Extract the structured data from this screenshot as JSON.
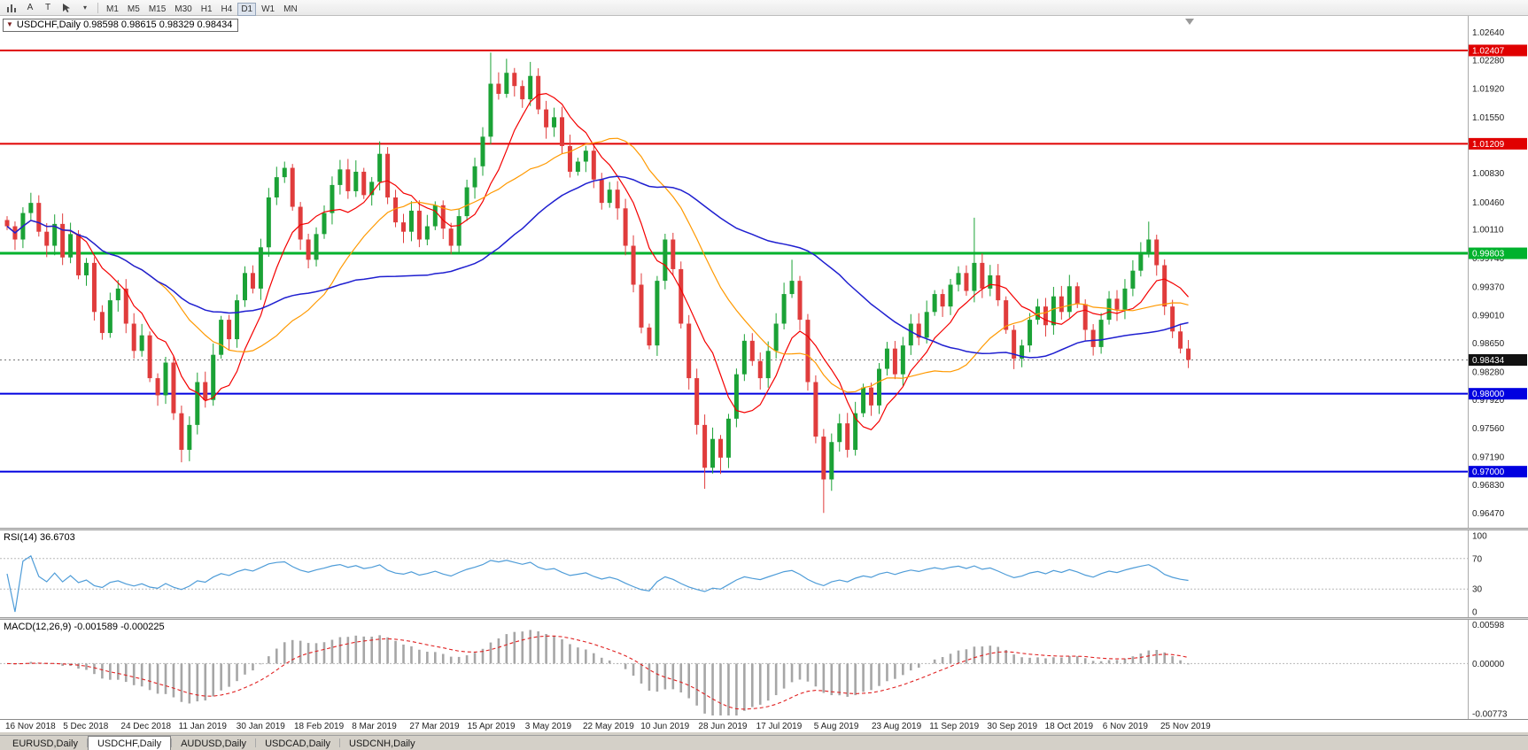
{
  "toolbar": {
    "a_label": "A",
    "t_label": "T",
    "timeframes": [
      "M1",
      "M5",
      "M15",
      "M30",
      "H1",
      "H4",
      "D1",
      "W1",
      "MN"
    ],
    "active_timeframe": "D1"
  },
  "chart": {
    "header_text": "USDCHF,Daily 0.98598 0.98615 0.98329 0.98434"
  },
  "rsi_panel": {
    "title": "RSI(14) 36.6703"
  },
  "macd_panel": {
    "title": "MACD(12,26,9) -0.001589 -0.000225"
  },
  "tabs": {
    "items": [
      "EURUSD,Daily",
      "USDCHF,Daily",
      "AUDUSD,Daily",
      "USDCAD,Daily",
      "USDCNH,Daily"
    ],
    "active": "USDCHF,Daily"
  },
  "chart_data": {
    "type": "candlestick",
    "symbol": "USDCHF",
    "timeframe": "Daily",
    "ohlc_header": {
      "open": "0.98598",
      "high": "0.98615",
      "low": "0.98329",
      "close": "0.98434"
    },
    "y_range": [
      0.9628,
      1.0285
    ],
    "y_ticks": [
      1.0264,
      1.0228,
      1.0192,
      1.0155,
      1.0083,
      1.0046,
      1.0011,
      0.9974,
      0.9937,
      0.9901,
      0.9865,
      0.9828,
      0.9792,
      0.9756,
      0.9719,
      0.9683,
      0.9647
    ],
    "hlines": [
      {
        "price": 1.02407,
        "color": "#e00000",
        "label": "1.02407",
        "width": 2
      },
      {
        "price": 1.01209,
        "color": "#e00000",
        "label": "1.01209",
        "width": 2
      },
      {
        "price": 0.99803,
        "color": "#00b22d",
        "label": "0.99803",
        "width": 3
      },
      {
        "price": 0.98,
        "color": "#0000e0",
        "label": "0.98000",
        "width": 2
      },
      {
        "price": 0.97,
        "color": "#0000e0",
        "label": "0.97000",
        "width": 2
      }
    ],
    "current_price": {
      "price": 0.98434,
      "label": "0.98434",
      "color": "#111111"
    },
    "colors": {
      "up": "#1ba236",
      "down": "#e03c3c"
    },
    "x_labels": [
      "16 Nov 2018",
      "5 Dec 2018",
      "24 Dec 2018",
      "11 Jan 2019",
      "30 Jan 2019",
      "18 Feb 2019",
      "8 Mar 2019",
      "27 Mar 2019",
      "15 Apr 2019",
      "3 May 2019",
      "22 May 2019",
      "10 Jun 2019",
      "28 Jun 2019",
      "17 Jul 2019",
      "5 Aug 2019",
      "23 Aug 2019",
      "11 Sep 2019",
      "30 Sep 2019",
      "18 Oct 2019",
      "6 Nov 2019",
      "25 Nov 2019"
    ],
    "closes": [
      1.0015,
      0.9998,
      1.0032,
      1.0045,
      1.0008,
      0.999,
      1.0018,
      0.9975,
      1.0005,
      0.9952,
      0.9968,
      0.9905,
      0.9878,
      0.992,
      0.9935,
      0.989,
      0.9855,
      0.9875,
      0.982,
      0.9798,
      0.984,
      0.9775,
      0.9728,
      0.976,
      0.9815,
      0.9792,
      0.985,
      0.9895,
      0.987,
      0.992,
      0.9955,
      0.9935,
      0.9988,
      1.0052,
      1.0078,
      1.009,
      1.004,
      0.9998,
      0.9972,
      1.0005,
      1.0032,
      1.0068,
      1.0088,
      1.006,
      1.0085,
      1.0055,
      1.0072,
      1.0108,
      1.0052,
      1.002,
      1.0008,
      1.0035,
      0.9998,
      1.0015,
      1.0042,
      1.0012,
      0.999,
      1.0028,
      1.0065,
      1.0092,
      1.013,
      1.0198,
      1.0185,
      1.0212,
      1.0195,
      1.0178,
      1.0208,
      1.0165,
      1.0142,
      1.0155,
      1.0118,
      1.0085,
      1.0098,
      1.0112,
      1.0075,
      1.0045,
      1.0062,
      1.0038,
      0.999,
      0.994,
      0.9885,
      0.9862,
      0.9945,
      0.9998,
      0.996,
      0.989,
      0.982,
      0.976,
      0.9705,
      0.9742,
      0.9718,
      0.9768,
      0.9825,
      0.9868,
      0.9842,
      0.982,
      0.9855,
      0.989,
      0.9928,
      0.9945,
      0.9895,
      0.9815,
      0.9745,
      0.969,
      0.9738,
      0.9762,
      0.9728,
      0.9775,
      0.9808,
      0.9785,
      0.9832,
      0.9858,
      0.9825,
      0.9862,
      0.989,
      0.9872,
      0.9905,
      0.9928,
      0.9912,
      0.994,
      0.9955,
      0.9932,
      0.9968,
      0.9935,
      0.9952,
      0.992,
      0.9882,
      0.9845,
      0.9862,
      0.9895,
      0.9912,
      0.9888,
      0.9925,
      0.9905,
      0.9938,
      0.9915,
      0.9882,
      0.986,
      0.9895,
      0.9922,
      0.9908,
      0.9935,
      0.9958,
      0.998,
      0.9998,
      0.9965,
      0.9912,
      0.988,
      0.9858,
      0.98434
    ],
    "wick_overrides": {
      "3": {
        "high": 1.0058
      },
      "22": {
        "low": 0.9712
      },
      "35": {
        "high": 1.0098
      },
      "47": {
        "high": 1.0124
      },
      "61": {
        "high": 1.0238
      },
      "63": {
        "high": 1.023
      },
      "66": {
        "high": 1.0226
      },
      "88": {
        "low": 0.9678
      },
      "90": {
        "low": 0.9697
      },
      "99": {
        "high": 0.9972
      },
      "103": {
        "low": 0.9647
      },
      "122": {
        "high": 1.0026
      },
      "144": {
        "high": 1.0021
      },
      "149": {
        "low": 0.9833
      }
    },
    "moving_averages": [
      {
        "period": 8,
        "color": "#f40000",
        "width": 1.2
      },
      {
        "period": 20,
        "color": "#ff9900",
        "width": 1.2
      },
      {
        "period": 45,
        "color": "#1f1fd0",
        "width": 1.5
      }
    ],
    "rsi": {
      "period": 14,
      "current": "36.6703",
      "levels": [
        70,
        30
      ],
      "axis_labels": [
        100,
        70,
        30,
        0
      ],
      "color": "#4e9cd8"
    },
    "macd": {
      "fast": 12,
      "slow": 26,
      "signal": 9,
      "macd_value": "-0.001589",
      "signal_value": "-0.000225",
      "range": [
        -0.008,
        0.0062
      ],
      "axis_labels": [
        {
          "v": 0.00598,
          "t": "0.00598"
        },
        {
          "v": 0,
          "t": "0.00000"
        },
        {
          "v": -0.00773,
          "t": "-0.00773"
        }
      ],
      "bar_color": "#a6a6a6",
      "signal_color": "#e02020"
    }
  }
}
